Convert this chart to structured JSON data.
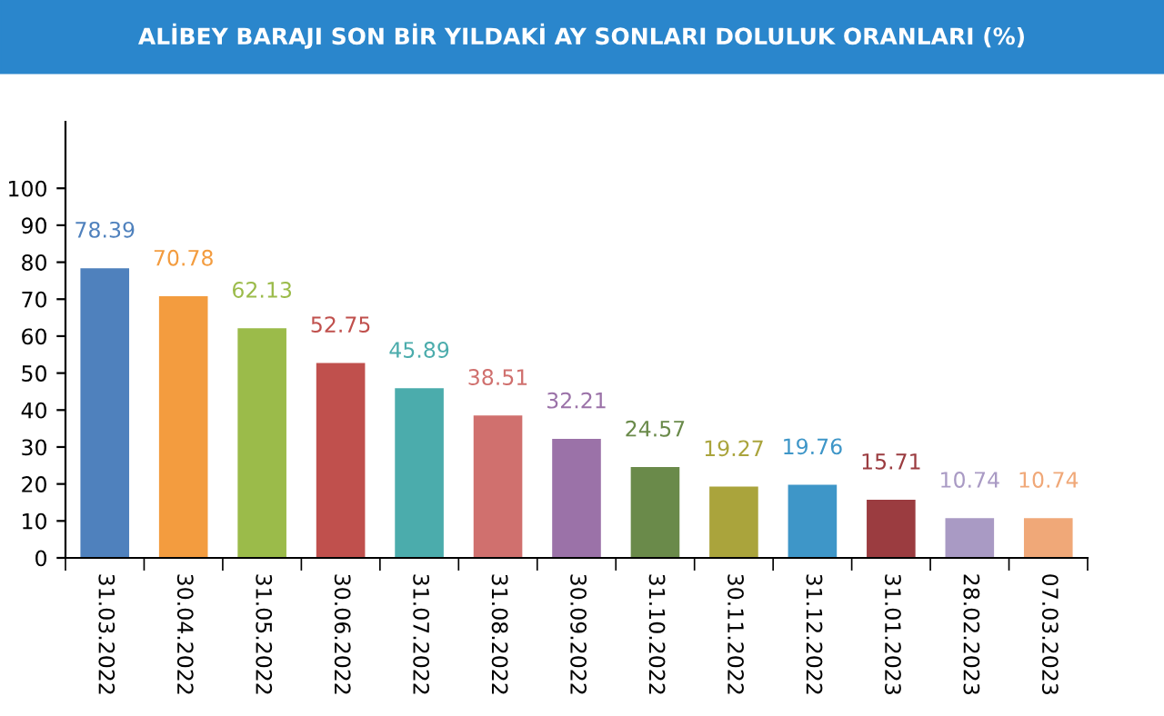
{
  "chart_data": {
    "type": "bar",
    "title": "ALİBEY BARAJI SON BİR YILDAKİ AY SONLARI DOLULUK ORANLARI (%)",
    "categories": [
      "31.03.2022",
      "30.04.2022",
      "31.05.2022",
      "30.06.2022",
      "31.07.2022",
      "31.08.2022",
      "30.09.2022",
      "31.10.2022",
      "30.11.2022",
      "31.12.2022",
      "31.01.2023",
      "28.02.2023",
      "07.03.2023"
    ],
    "values": [
      78.39,
      70.78,
      62.13,
      52.75,
      45.89,
      38.51,
      32.21,
      24.57,
      19.27,
      19.76,
      15.71,
      10.74,
      10.74
    ],
    "colors": [
      "#4f81bd",
      "#f39c3f",
      "#9bbb4a",
      "#c0504d",
      "#4bacac",
      "#d0706e",
      "#9b72a8",
      "#6a8a4a",
      "#aaa43c",
      "#3e96c8",
      "#9b3c40",
      "#a99ac4",
      "#f0a878"
    ],
    "ylim": [
      0,
      118
    ],
    "yticks": [
      0,
      10,
      20,
      30,
      40,
      50,
      60,
      70,
      80,
      90,
      100
    ],
    "data_labels": true,
    "grid": false,
    "legend": false
  }
}
